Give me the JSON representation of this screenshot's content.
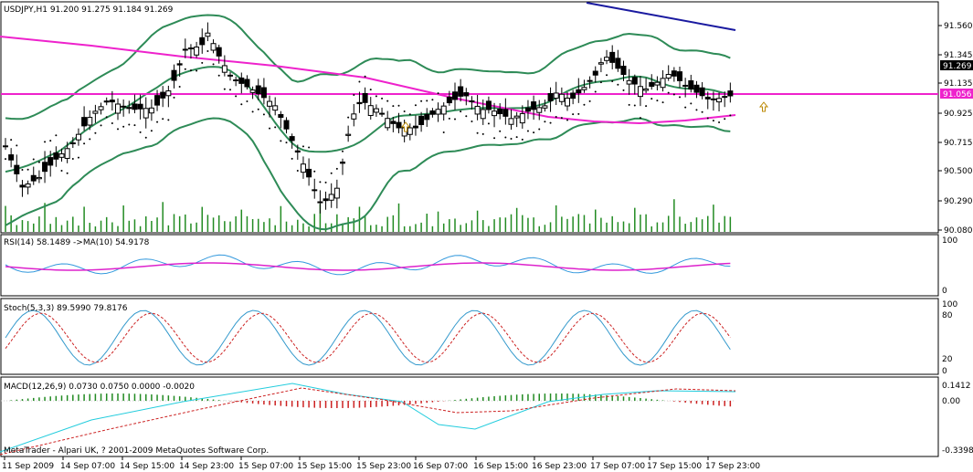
{
  "main": {
    "symbol_label": "USDJPY,H1  91.200 91.275 91.184 91.269",
    "price_ticks": [
      "91.560",
      "91.345",
      "91.135",
      "90.925",
      "90.715",
      "90.500",
      "90.290",
      "90.080"
    ],
    "last_price": "91.269",
    "hline_price": "91.056",
    "price_min": 90.04,
    "price_max": 91.7
  },
  "rsi": {
    "label": "RSI(14) 58.1489   ->MA(10) 54.9178",
    "ticks": [
      "100",
      "0"
    ]
  },
  "stoch": {
    "label": "Stoch(5,3,3) 89.5990 79.8176",
    "ticks": [
      "100",
      "80",
      "20",
      "0"
    ]
  },
  "macd": {
    "label": "MACD(12,26,9) 0.0730 0.0750 0.0000 -0.0020",
    "ticks": [
      "0.1412",
      "0.00",
      "-0.3398"
    ]
  },
  "copyright": "MetaTrader - Alpari UK, ? 2001-2009 MetaQuotes Software Corp.",
  "time_axis": [
    "11 Sep 2009",
    "14 Sep 07:00",
    "14 Sep 15:00",
    "14 Sep 23:00",
    "15 Sep 07:00",
    "15 Sep 15:00",
    "15 Sep 23:00",
    "16 Sep 07:00",
    "16 Sep 15:00",
    "16 Sep 23:00",
    "17 Sep 07:00",
    "17 Sep 15:00",
    "17 Sep 23:00"
  ],
  "colors": {
    "bg": "#ffffff",
    "grid": "#000000",
    "bollinger": "#2e8b57",
    "ma": "#ee22cc",
    "trend": "#1a1aa0",
    "volume": "#228b22",
    "sar": "#000000",
    "rsi": "#3399dd",
    "rsi_ma": "#dd22cc",
    "stoch_main": "#3399cc",
    "stoch_signal": "#cc2222",
    "macd_main": "#22ccdd",
    "macd_signal": "#cc2222",
    "hist_up": "#228b22",
    "hist_down": "#cc2222",
    "arrow": "#bb8800",
    "price_box": "#000000",
    "hline_box": "#ee22cc"
  }
}
